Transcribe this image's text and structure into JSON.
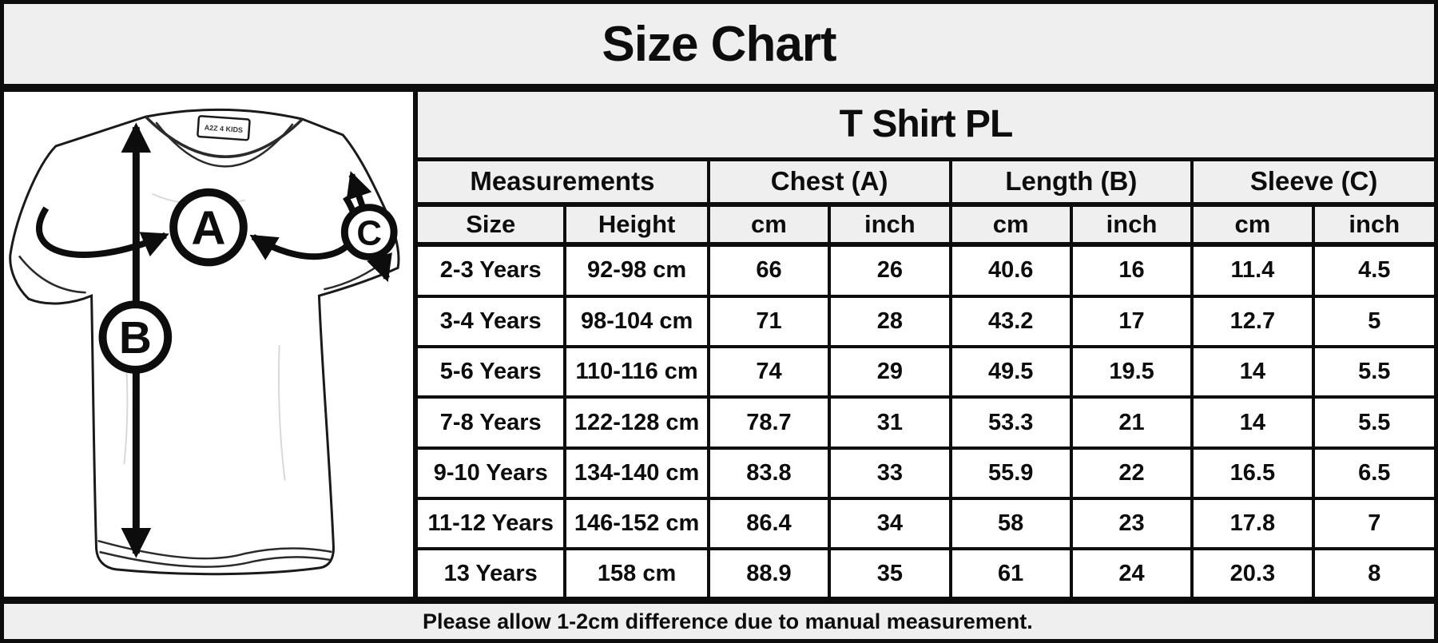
{
  "page_title": "Size Chart",
  "diagram": {
    "tag_label": "A2Z 4 KIDS",
    "markers": {
      "chest": "A",
      "length": "B",
      "sleeve": "C"
    }
  },
  "table": {
    "title": "T Shirt PL",
    "group_headers": [
      "Measurements",
      "Chest (A)",
      "Length (B)",
      "Sleeve (C)"
    ],
    "sub_headers": [
      "Size",
      "Height",
      "cm",
      "inch",
      "cm",
      "inch",
      "cm",
      "inch"
    ],
    "rows": [
      [
        "2-3 Years",
        "92-98 cm",
        "66",
        "26",
        "40.6",
        "16",
        "11.4",
        "4.5"
      ],
      [
        "3-4 Years",
        "98-104 cm",
        "71",
        "28",
        "43.2",
        "17",
        "12.7",
        "5"
      ],
      [
        "5-6 Years",
        "110-116 cm",
        "74",
        "29",
        "49.5",
        "19.5",
        "14",
        "5.5"
      ],
      [
        "7-8 Years",
        "122-128 cm",
        "78.7",
        "31",
        "53.3",
        "21",
        "14",
        "5.5"
      ],
      [
        "9-10 Years",
        "134-140 cm",
        "83.8",
        "33",
        "55.9",
        "22",
        "16.5",
        "6.5"
      ],
      [
        "11-12 Years",
        "146-152 cm",
        "86.4",
        "34",
        "58",
        "23",
        "17.8",
        "7"
      ],
      [
        "13 Years",
        "158 cm",
        "88.9",
        "35",
        "61",
        "24",
        "20.3",
        "8"
      ]
    ]
  },
  "footer": {
    "note": "Please allow 1-2cm difference due to manual measurement."
  },
  "colors": {
    "panel_bg": "#efefef",
    "cell_bg": "#ffffff",
    "ink": "#0d0d0d"
  },
  "chart_data": {
    "type": "table",
    "title": "T Shirt PL",
    "columns": [
      "Size",
      "Height",
      "Chest (A) cm",
      "Chest (A) inch",
      "Length (B) cm",
      "Length (B) inch",
      "Sleeve (C) cm",
      "Sleeve (C) inch"
    ],
    "rows": [
      [
        "2-3 Years",
        "92-98 cm",
        66,
        26,
        40.6,
        16,
        11.4,
        4.5
      ],
      [
        "3-4 Years",
        "98-104 cm",
        71,
        28,
        43.2,
        17,
        12.7,
        5
      ],
      [
        "5-6 Years",
        "110-116 cm",
        74,
        29,
        49.5,
        19.5,
        14,
        5.5
      ],
      [
        "7-8 Years",
        "122-128 cm",
        78.7,
        31,
        53.3,
        21,
        14,
        5.5
      ],
      [
        "9-10 Years",
        "134-140 cm",
        83.8,
        33,
        55.9,
        22,
        16.5,
        6.5
      ],
      [
        "11-12 Years",
        "146-152 cm",
        86.4,
        34,
        58,
        23,
        17.8,
        7
      ],
      [
        "13 Years",
        "158 cm",
        88.9,
        35,
        61,
        24,
        20.3,
        8
      ]
    ],
    "footnote": "Please allow 1-2cm difference due to manual measurement."
  }
}
